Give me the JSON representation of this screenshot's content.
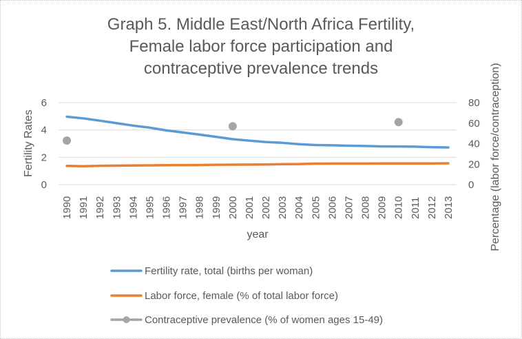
{
  "chart_data": {
    "type": "line",
    "title_lines": [
      "Graph 5. Middle East/North Africa Fertility,",
      "Female labor force participation and",
      "contraceptive prevalence trends"
    ],
    "xlabel": "year",
    "ylabel": "Fertility Rates",
    "y2label": "Percentage (labor force/contraception)",
    "ylim": [
      0,
      6
    ],
    "yticks": [
      "0",
      "2",
      "4",
      "6"
    ],
    "y2lim": [
      0,
      80
    ],
    "y2ticks": [
      "0",
      "20",
      "40",
      "60",
      "80"
    ],
    "grid": true,
    "legend_position": "bottom",
    "categories": [
      "1990",
      "1991",
      "1992",
      "1993",
      "1994",
      "1995",
      "1996",
      "1997",
      "1998",
      "1999",
      "2000",
      "2001",
      "2002",
      "2003",
      "2004",
      "2005",
      "2006",
      "2007",
      "2008",
      "2009",
      "2010",
      "2011",
      "2012",
      "2013"
    ],
    "series": [
      {
        "name": "Fertility rate, total (births per woman)",
        "axis": "left",
        "color": "#5b9bd5",
        "style": "line",
        "values": [
          4.97,
          4.85,
          4.68,
          4.5,
          4.32,
          4.17,
          3.97,
          3.82,
          3.66,
          3.5,
          3.33,
          3.22,
          3.12,
          3.06,
          2.96,
          2.9,
          2.88,
          2.85,
          2.83,
          2.8,
          2.79,
          2.78,
          2.74,
          2.72
        ]
      },
      {
        "name": "Labor force, female (% of total labor force)",
        "axis": "right",
        "color": "#ed7d31",
        "style": "line",
        "values": [
          18.3,
          18.0,
          18.4,
          18.6,
          18.7,
          18.8,
          19.0,
          19.1,
          19.2,
          19.4,
          19.5,
          19.6,
          19.7,
          20.0,
          20.1,
          20.5,
          20.6,
          20.6,
          20.6,
          20.7,
          20.7,
          20.7,
          20.7,
          20.8
        ]
      },
      {
        "name": "Contraceptive prevalence (% of women ages 15-49)",
        "axis": "right",
        "color": "#a5a5a5",
        "style": "marker-line",
        "values": [
          43,
          null,
          null,
          null,
          null,
          null,
          null,
          null,
          null,
          null,
          57,
          null,
          null,
          null,
          null,
          null,
          null,
          null,
          null,
          null,
          61,
          null,
          null,
          null
        ]
      }
    ]
  }
}
